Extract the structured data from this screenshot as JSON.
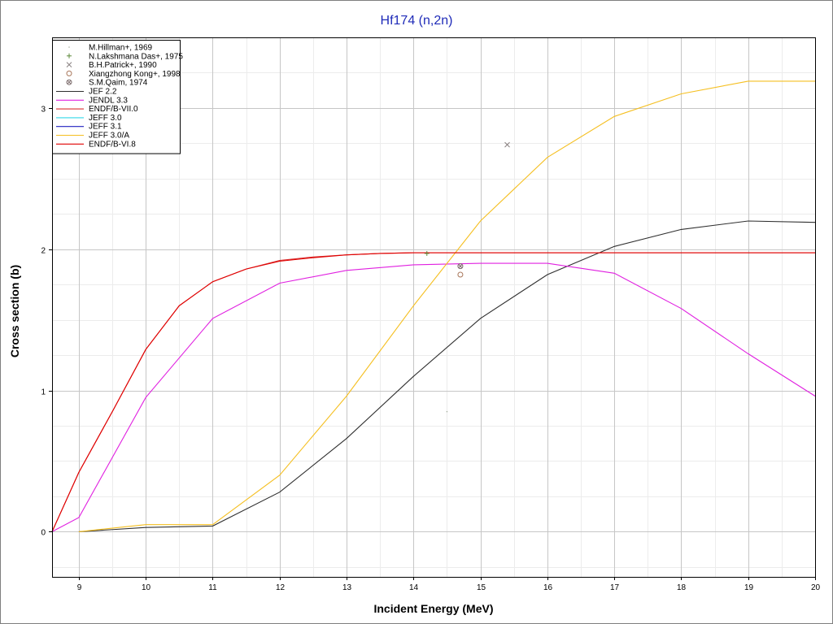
{
  "chart_data": {
    "type": "line",
    "title": "Hf174 (n,2n)",
    "xlabel": "Incident Energy (MeV)",
    "ylabel": "Cross section (b)",
    "xlim": [
      8.6,
      20
    ],
    "ylim": [
      -0.32,
      3.5
    ],
    "x_ticks": [
      9,
      10,
      11,
      12,
      13,
      14,
      15,
      16,
      17,
      18,
      19,
      20
    ],
    "y_ticks": [
      0,
      1,
      2,
      3
    ],
    "x_minor_step": 0.5,
    "y_minor_step": 0.25,
    "grid": true,
    "legend_position": "top-left",
    "experimental": [
      {
        "name": "M.Hillman+, 1969",
        "marker": "dot",
        "color": "#a8b0a0",
        "points": [
          [
            14.5,
            0.85
          ]
        ]
      },
      {
        "name": "N.Lakshmana Das+, 1975",
        "marker": "plus",
        "color": "#5d8a3a",
        "points": [
          [
            14.2,
            1.97
          ]
        ]
      },
      {
        "name": "B.H.Patrick+, 1990",
        "marker": "x",
        "color": "#8a8282",
        "points": [
          [
            15.4,
            2.74
          ]
        ]
      },
      {
        "name": "Xiangzhong Kong+, 1998",
        "marker": "circle",
        "color": "#a8765a",
        "points": [
          [
            14.7,
            1.82
          ]
        ]
      },
      {
        "name": "S.M.Qaim, 1974",
        "marker": "circle-x",
        "color": "#7a6a6a",
        "points": [
          [
            14.7,
            1.88
          ]
        ]
      }
    ],
    "series": [
      {
        "name": "JEF 2.2",
        "color": "#2f2f2f",
        "x": [
          9,
          10,
          11,
          12,
          13,
          14,
          15,
          16,
          17,
          18,
          19,
          20
        ],
        "y": [
          0,
          0.03,
          0.04,
          0.28,
          0.66,
          1.1,
          1.51,
          1.82,
          2.02,
          2.14,
          2.2,
          2.19
        ]
      },
      {
        "name": "JENDL 3.3",
        "color": "#e020e0",
        "x": [
          8.6,
          9,
          10,
          11,
          12,
          13,
          14,
          15,
          16,
          17,
          18,
          19,
          20
        ],
        "y": [
          0,
          0.1,
          0.95,
          1.51,
          1.76,
          1.85,
          1.89,
          1.9,
          1.9,
          1.83,
          1.58,
          1.26,
          0.96
        ]
      },
      {
        "name": "ENDF/B-VII.0",
        "color": "#d83030",
        "x": [
          8.6,
          9,
          9.5,
          10,
          10.5,
          11,
          11.5,
          12,
          12.5,
          13,
          13.5,
          14,
          14.5,
          15,
          16,
          17,
          18,
          19,
          20
        ],
        "y": [
          0,
          0.42,
          0.85,
          1.29,
          1.6,
          1.77,
          1.86,
          1.92,
          1.945,
          1.96,
          1.97,
          1.975,
          1.975,
          1.975,
          1.975,
          1.975,
          1.975,
          1.975,
          1.975
        ]
      },
      {
        "name": "JEFF 3.0",
        "color": "#30d8e8",
        "x": [],
        "y": []
      },
      {
        "name": "JEFF 3.1",
        "color": "#2020c0",
        "x": [],
        "y": []
      },
      {
        "name": "JEFF 3.0/A",
        "color": "#f5bf20",
        "x": [
          9,
          10,
          11,
          12,
          13,
          14,
          15,
          16,
          17,
          18,
          19,
          20
        ],
        "y": [
          0,
          0.05,
          0.05,
          0.4,
          0.96,
          1.6,
          2.2,
          2.65,
          2.94,
          3.1,
          3.19,
          3.19
        ]
      },
      {
        "name": "ENDF/B-VI.8",
        "color": "#e00000",
        "x": [
          8.6,
          9,
          9.5,
          10,
          10.5,
          11,
          11.5,
          12,
          12.5,
          13,
          13.5,
          14,
          14.5,
          15,
          16,
          17,
          18,
          19,
          20
        ],
        "y": [
          0,
          0.42,
          0.85,
          1.29,
          1.6,
          1.77,
          1.86,
          1.915,
          1.94,
          1.96,
          1.97,
          1.975,
          1.975,
          1.975,
          1.975,
          1.975,
          1.975,
          1.975,
          1.975
        ]
      }
    ]
  }
}
